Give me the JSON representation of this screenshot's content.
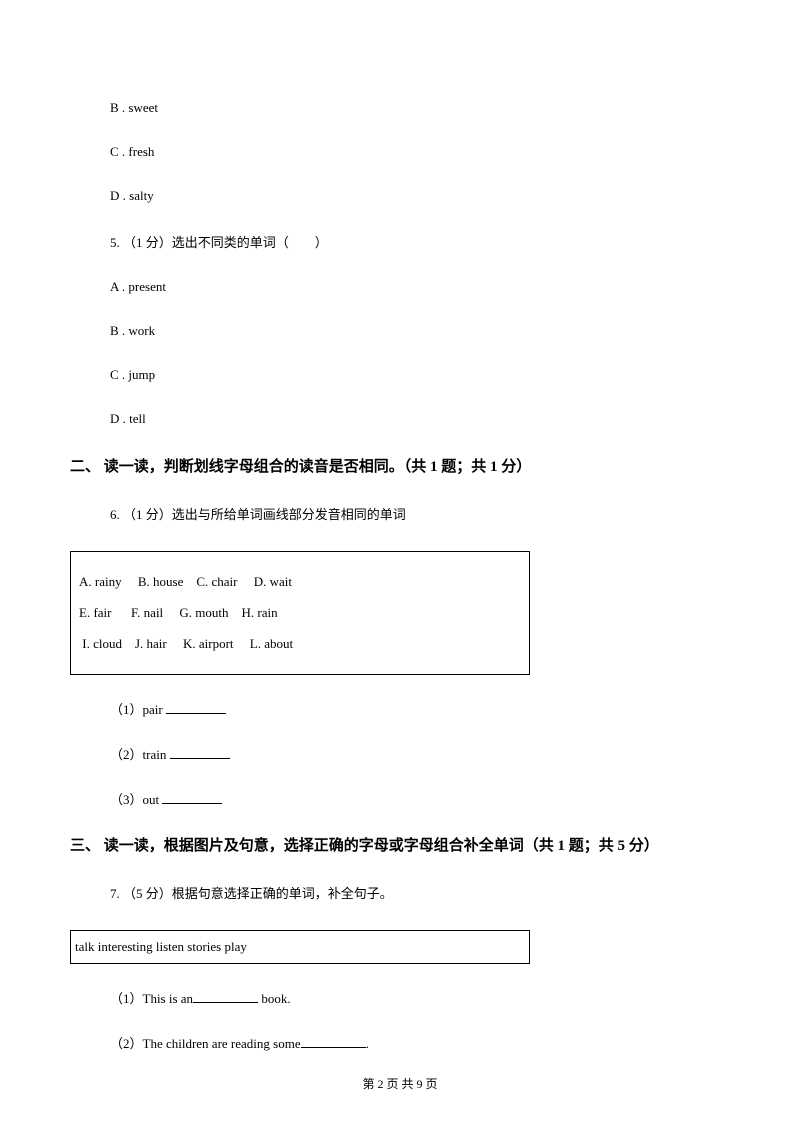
{
  "q4_opts": {
    "b": "B . sweet",
    "c": "C . fresh",
    "d": "D . salty"
  },
  "q5": {
    "stem": "5. （1 分）选出不同类的单词（　　）",
    "a": "A . present",
    "b": "B . work",
    "c": "C . jump",
    "d": "D . tell"
  },
  "section2": {
    "heading": "二、 读一读，判断划线字母组合的读音是否相同。（共 1 题；共 1 分）",
    "q6_stem": "6. （1 分）选出与所给单词画线部分发音相同的单词",
    "box_row1": "A. rainy     B. house    C. chair     D. wait",
    "box_row2": "E. fair      F. nail     G. mouth    H. rain",
    "box_row3": " I. cloud    J. hair     K. airport     L. about",
    "sub1": "（1）pair ",
    "sub2": "（2）train ",
    "sub3": "（3）out "
  },
  "section3": {
    "heading": "三、 读一读，根据图片及句意，选择正确的字母或字母组合补全单词（共 1 题；共 5 分）",
    "q7_stem": "7. （5 分）根据句意选择正确的单词，补全句子。",
    "box": "talk    interesting    listen    stories    play",
    "sub1_pre": "（1）This is an",
    "sub1_post": " book.",
    "sub2_pre": "（2）The children are reading some",
    "sub2_post": "."
  },
  "footer": "第 2 页 共 9 页"
}
